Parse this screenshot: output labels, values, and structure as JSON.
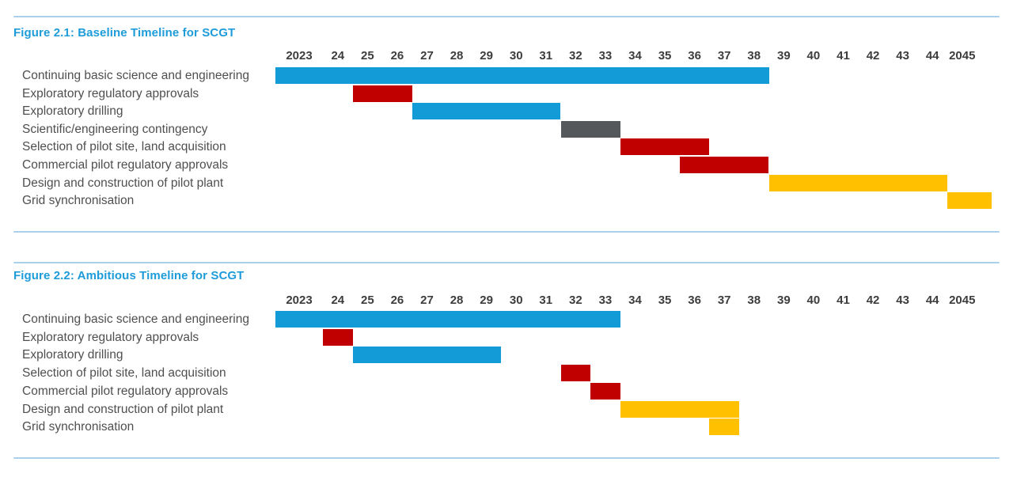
{
  "colors": {
    "blue": "#139BD8",
    "red": "#C00000",
    "gray": "#54585B",
    "yellow": "#FFC000",
    "title_blue": "#1E9CD9",
    "rule_blue": "#A9D2EA",
    "row_label_text": "#4F4F4F",
    "axis_text": "#3D3D3D"
  },
  "chart_data": [
    {
      "type": "gantt",
      "title": "Figure 2.1: Baseline Timeline for SCGT",
      "axis_range": [
        2023,
        2045
      ],
      "tick_labels": [
        "2023",
        "24",
        "25",
        "26",
        "27",
        "28",
        "29",
        "30",
        "31",
        "32",
        "33",
        "34",
        "35",
        "36",
        "37",
        "38",
        "39",
        "40",
        "41",
        "42",
        "43",
        "44",
        "2045"
      ],
      "tasks": [
        {
          "label": "Continuing basic science and engineering",
          "start": 2023,
          "end": 2039,
          "color": "blue"
        },
        {
          "label": "Exploratory regulatory approvals",
          "start": 2025,
          "end": 2027,
          "color": "red"
        },
        {
          "label": "Exploratory drilling",
          "start": 2027,
          "end": 2032,
          "color": "blue"
        },
        {
          "label": "Scientific/engineering contingency",
          "start": 2032,
          "end": 2034,
          "color": "gray"
        },
        {
          "label": "Selection of pilot site, land acquisition",
          "start": 2034,
          "end": 2037,
          "color": "red"
        },
        {
          "label": "Commercial pilot regulatory approvals",
          "start": 2036,
          "end": 2039,
          "color": "red"
        },
        {
          "label": "Design and construction of pilot plant",
          "start": 2039,
          "end": 2045,
          "color": "yellow"
        },
        {
          "label": "Grid synchronisation",
          "start": 2045,
          "end": 2046.5,
          "color": "yellow"
        }
      ]
    },
    {
      "type": "gantt",
      "title": "Figure 2.2: Ambitious Timeline for SCGT",
      "axis_range": [
        2023,
        2045
      ],
      "tick_labels": [
        "2023",
        "24",
        "25",
        "26",
        "27",
        "28",
        "29",
        "30",
        "31",
        "32",
        "33",
        "34",
        "35",
        "36",
        "37",
        "38",
        "39",
        "40",
        "41",
        "42",
        "43",
        "44",
        "2045"
      ],
      "tasks": [
        {
          "label": "Continuing basic science and engineering",
          "start": 2023,
          "end": 2034,
          "color": "blue"
        },
        {
          "label": "Exploratory regulatory approvals",
          "start": 2024,
          "end": 2025,
          "color": "red"
        },
        {
          "label": "Exploratory drilling",
          "start": 2025,
          "end": 2030,
          "color": "blue"
        },
        {
          "label": "Selection of pilot site, land acquisition",
          "start": 2032,
          "end": 2033,
          "color": "red"
        },
        {
          "label": "Commercial pilot regulatory approvals",
          "start": 2033,
          "end": 2034,
          "color": "red"
        },
        {
          "label": "Design and construction of pilot plant",
          "start": 2034,
          "end": 2038,
          "color": "yellow"
        },
        {
          "label": "Grid synchronisation",
          "start": 2037,
          "end": 2038,
          "color": "yellow"
        }
      ]
    }
  ]
}
